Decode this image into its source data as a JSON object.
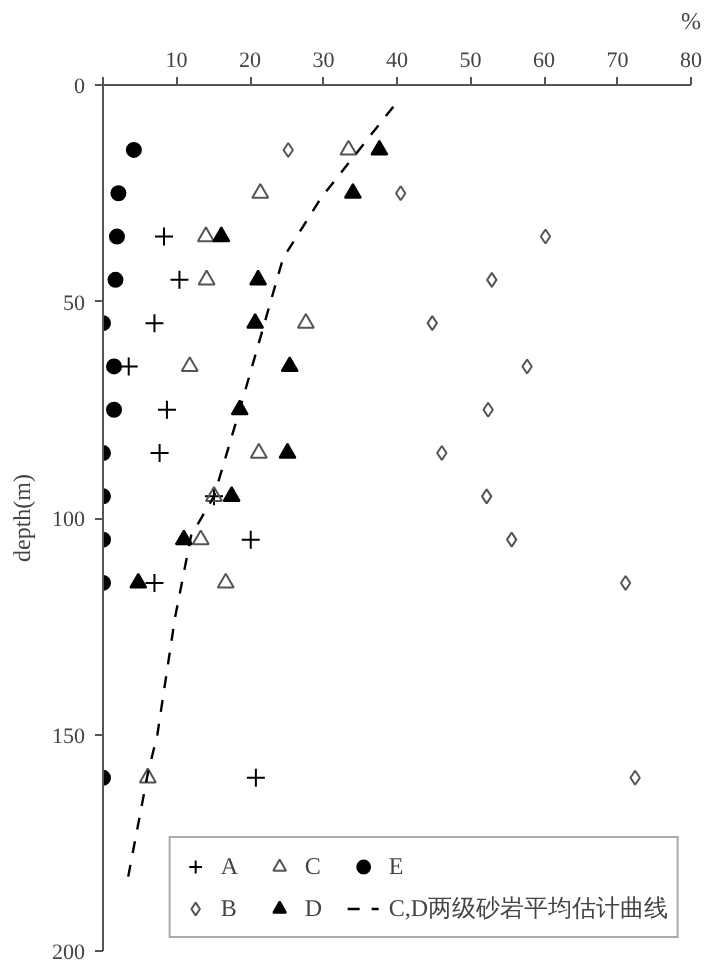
{
  "chart_data": {
    "type": "scatter",
    "xlabel": "%",
    "ylabel": "depth(m)",
    "xlim": [
      0,
      80
    ],
    "xticks": [
      {
        "value": 0,
        "label": null
      },
      10,
      20,
      30,
      40,
      50,
      60,
      70,
      80
    ],
    "ylim": [
      200,
      0
    ],
    "yticks": [
      0,
      50,
      100,
      150,
      200
    ],
    "grid": false,
    "legend": "bottom right",
    "series": [
      {
        "name": "A",
        "color": "#000000",
        "marker": "cross",
        "x": [
          8.3,
          10.4,
          7,
          3.5,
          8.7,
          7.7,
          15.1,
          20.1,
          7,
          20.8
        ],
        "values": [
          35,
          45,
          55,
          65,
          75,
          85,
          95,
          105,
          115,
          160
        ]
      },
      {
        "name": "B",
        "color": "#555555",
        "marker": "diamond",
        "x": [
          25.2,
          40.5,
          60.2,
          52.9,
          44.8,
          57.7,
          52.4,
          46.1,
          52.2,
          55.6,
          71.1,
          72.4
        ],
        "values": [
          15,
          25,
          35,
          45,
          55,
          65,
          75,
          85,
          95,
          105,
          115,
          160
        ]
      },
      {
        "name": "C",
        "color": "#555555",
        "marker": "triangle",
        "x": [
          33.4,
          21.4,
          14,
          14.1,
          27.6,
          11.8,
          21.2,
          15.1,
          13.3,
          16.7,
          6.1
        ],
        "values": [
          15,
          25,
          35,
          45,
          55,
          65,
          85,
          95,
          105,
          115,
          160
        ]
      },
      {
        "name": "D",
        "color": "#000000",
        "marker": "triangle",
        "x": [
          37.6,
          34,
          16.1,
          21.1,
          20.7,
          25.4,
          18.6,
          25.1,
          17.5,
          11,
          4.8
        ],
        "values": [
          15,
          25,
          35,
          45,
          55,
          65,
          75,
          85,
          95,
          105,
          115
        ]
      },
      {
        "name": "E",
        "color": "#000000",
        "marker": "circle",
        "x": [
          4.2,
          2.1,
          1.9,
          1.7,
          0,
          1.5,
          1.5,
          0,
          0,
          0,
          0,
          0
        ],
        "values": [
          15,
          25,
          35,
          45,
          55,
          65,
          75,
          85,
          95,
          105,
          115,
          160
        ]
      },
      {
        "name": "C,D两级砂岩平均估计曲线",
        "type": "line",
        "line_style": "dashed",
        "marker": "none",
        "color": "#000000",
        "x": [
          39.5,
          29.7,
          24.5,
          18.6,
          15.1,
          12,
          9.8,
          7.4,
          6.1,
          3.3
        ],
        "values": [
          5,
          26,
          40,
          75,
          95,
          104,
          123,
          150,
          159,
          184
        ]
      }
    ]
  }
}
